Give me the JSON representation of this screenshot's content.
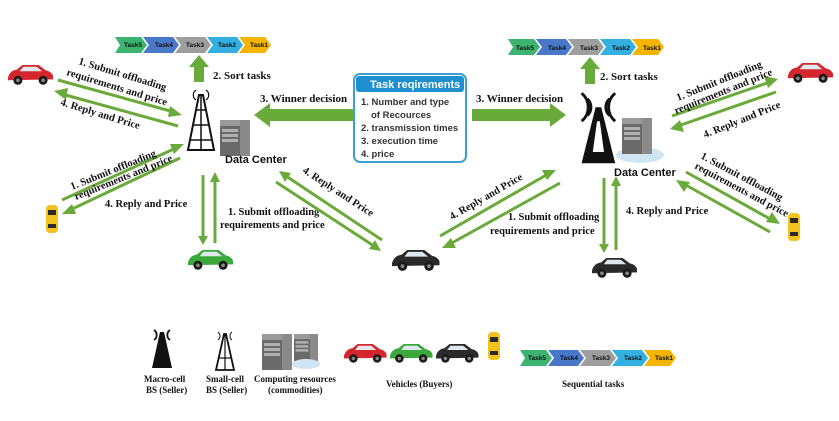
{
  "tasks": {
    "t5": "Task5",
    "t4": "Task4",
    "t3": "Task3",
    "t2": "Task2",
    "t1": "Task1"
  },
  "task_colors": {
    "t5": "#3cb371",
    "t4": "#4a78c8",
    "t3": "#9e9e9e",
    "t2": "#33b0e0",
    "t1": "#f5b400"
  },
  "requirements": {
    "title": "Task reqirements",
    "item1a": "1. Number and type",
    "item1b": "of Recources",
    "item2": "2. transmission times",
    "item3": "3. execution time",
    "item4": "4. price"
  },
  "labels": {
    "sort_left": "2. Sort  tasks",
    "sort_right": "2. Sort  tasks",
    "winner_left": "3. Winner decision",
    "winner_right": "3. Winner decision",
    "dc_left": "Data Center",
    "dc_right": "Data Center",
    "submit_a1": "1. Submit offloading",
    "submit_a2": "requirements and price",
    "reply": "4. Reply and Price",
    "submit_b1": "1. Submit offloading",
    "submit_b2": "requirements and price"
  },
  "legend": {
    "macro1": "Macro-cell",
    "macro2": "BS (Seller)",
    "small1": "Small-cell",
    "small2": "BS (Seller)",
    "comp1": "Computing resources",
    "comp2": "(commodities)",
    "vehicles": "Vehicles (Buyers)",
    "seq": "Sequential tasks"
  },
  "colors": {
    "arrow": "#6aaa3a",
    "req_border": "#3aa0d0",
    "req_title_bg": "#1f8fd0",
    "car_red": "#d4262c",
    "car_green": "#3aa83a",
    "car_black": "#2a2a2a",
    "car_yellow": "#f2c21e"
  }
}
